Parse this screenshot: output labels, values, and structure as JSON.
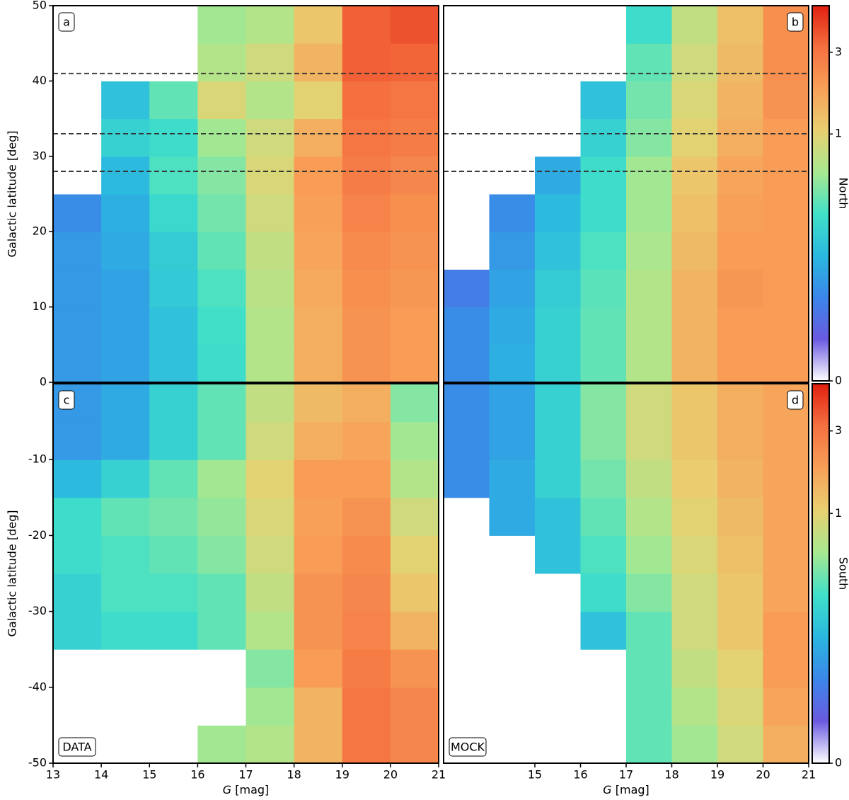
{
  "chart_data": [
    {
      "type": "heatmap",
      "panel_label": "a",
      "label_corner": "upper left",
      "ylabel": "Galactic latitude [deg]",
      "xbins": [
        13,
        14,
        15,
        16,
        17,
        18,
        19,
        20,
        21
      ],
      "ybins": [
        0,
        5,
        10,
        15,
        20,
        25,
        30,
        35,
        40,
        45,
        50
      ],
      "xlim": [
        13,
        21
      ],
      "ylim": [
        0,
        50
      ],
      "yticks": [
        0,
        10,
        20,
        30,
        40,
        50
      ],
      "hlines": [
        28,
        33,
        41
      ],
      "values": [
        [
          0.03,
          0.04,
          0.1,
          0.2,
          0.6,
          1.6,
          2.2,
          2.0
        ],
        [
          0.03,
          0.04,
          0.1,
          0.22,
          0.6,
          1.6,
          2.2,
          2.0
        ],
        [
          0.03,
          0.04,
          0.12,
          0.25,
          0.65,
          1.7,
          2.3,
          2.1
        ],
        [
          0.03,
          0.05,
          0.13,
          0.3,
          0.7,
          1.8,
          2.4,
          2.2
        ],
        [
          0.02,
          0.06,
          0.18,
          0.35,
          0.8,
          1.9,
          2.6,
          2.3
        ],
        [
          0,
          0.08,
          0.25,
          0.4,
          0.9,
          2.0,
          2.8,
          2.5
        ],
        [
          0,
          0.15,
          0.2,
          0.5,
          0.8,
          1.6,
          3.0,
          2.8
        ],
        [
          0,
          0.1,
          0.3,
          0.9,
          0.6,
          1.0,
          3.2,
          3.0
        ],
        [
          0,
          0,
          0,
          0.6,
          0.8,
          1.5,
          3.5,
          3.4
        ],
        [
          0,
          0,
          0,
          0.5,
          0.6,
          1.2,
          3.5,
          3.8
        ]
      ]
    },
    {
      "type": "heatmap",
      "panel_label": "b",
      "label_corner": "upper right",
      "xbins": [
        13,
        14,
        15,
        16,
        17,
        18,
        19,
        20,
        21
      ],
      "ybins": [
        0,
        5,
        10,
        15,
        20,
        25,
        30,
        35,
        40,
        45,
        50
      ],
      "xlim": [
        13,
        21
      ],
      "ylim": [
        0,
        50
      ],
      "hlines": [
        28,
        33,
        41
      ],
      "values": [
        [
          0.02,
          0.06,
          0.15,
          0.3,
          0.6,
          1.5,
          2.0,
          2.0
        ],
        [
          0.02,
          0.05,
          0.15,
          0.3,
          0.6,
          1.5,
          2.0,
          2.0
        ],
        [
          0.01,
          0.04,
          0.13,
          0.28,
          0.6,
          1.5,
          2.1,
          2.0
        ],
        [
          0,
          0.03,
          0.1,
          0.25,
          0.55,
          1.4,
          2.0,
          2.0
        ],
        [
          0,
          0.02,
          0.08,
          0.2,
          0.5,
          1.3,
          1.9,
          2.0
        ],
        [
          0,
          0,
          0.05,
          0.2,
          0.5,
          1.2,
          1.8,
          2.0
        ],
        [
          0,
          0,
          0,
          0.15,
          0.4,
          1.0,
          1.6,
          2.0
        ],
        [
          0,
          0,
          0,
          0.1,
          0.35,
          0.9,
          1.5,
          2.2
        ],
        [
          0,
          0,
          0,
          0,
          0.3,
          0.8,
          1.4,
          2.3
        ],
        [
          0,
          0,
          0,
          0,
          0.2,
          0.7,
          1.3,
          2.3
        ]
      ]
    },
    {
      "type": "heatmap",
      "panel_label": "c",
      "label_corner": "upper left",
      "tag": "DATA",
      "ylabel": "Galactic latitude [deg]",
      "xlabel": "G",
      "xlabel_unit": "[mag]",
      "xbins": [
        13,
        14,
        15,
        16,
        17,
        18,
        19,
        20,
        21
      ],
      "ybins": [
        -50,
        -45,
        -40,
        -35,
        -30,
        -25,
        -20,
        -15,
        -10,
        -5,
        0
      ],
      "xlim": [
        13,
        21
      ],
      "ylim": [
        -50,
        0
      ],
      "yticks": [
        -50,
        -40,
        -30,
        -20,
        -10
      ],
      "xticks": [
        13,
        14,
        15,
        16,
        17,
        18,
        19,
        20,
        21
      ],
      "values": [
        [
          0,
          0,
          0,
          0.5,
          0.6,
          1.5,
          3.0,
          2.5
        ],
        [
          0,
          0,
          0,
          0,
          0.5,
          1.5,
          3.0,
          2.5
        ],
        [
          0,
          0,
          0,
          0,
          0.4,
          2.0,
          2.8,
          2.2
        ],
        [
          0.15,
          0.2,
          0.2,
          0.3,
          0.6,
          2.2,
          2.6,
          1.5
        ],
        [
          0.15,
          0.25,
          0.25,
          0.3,
          0.7,
          2.2,
          2.5,
          1.2
        ],
        [
          0.2,
          0.25,
          0.3,
          0.4,
          0.8,
          2.0,
          2.4,
          1.0
        ],
        [
          0.2,
          0.3,
          0.35,
          0.45,
          0.9,
          1.9,
          2.2,
          0.8
        ],
        [
          0.08,
          0.15,
          0.3,
          0.5,
          1.0,
          2.0,
          2.0,
          0.6
        ],
        [
          0.03,
          0.05,
          0.15,
          0.3,
          0.8,
          1.6,
          1.8,
          0.5
        ],
        [
          0.03,
          0.05,
          0.15,
          0.3,
          0.7,
          1.4,
          1.6,
          0.4
        ]
      ]
    },
    {
      "type": "heatmap",
      "panel_label": "d",
      "label_corner": "upper right",
      "tag": "MOCK",
      "xlabel": "G",
      "xlabel_unit": "[mag]",
      "xbins": [
        13,
        14,
        15,
        16,
        17,
        18,
        19,
        20,
        21
      ],
      "ybins": [
        -50,
        -45,
        -40,
        -35,
        -30,
        -25,
        -20,
        -15,
        -10,
        -5,
        0
      ],
      "xlim": [
        13,
        21
      ],
      "ylim": [
        -50,
        0
      ],
      "xticks": [
        15,
        16,
        17,
        18,
        19,
        20,
        21
      ],
      "values": [
        [
          0,
          0,
          0,
          0,
          0.3,
          0.5,
          0.8,
          1.6
        ],
        [
          0,
          0,
          0,
          0,
          0.3,
          0.6,
          0.9,
          1.8
        ],
        [
          0,
          0,
          0,
          0,
          0.3,
          0.7,
          1.0,
          2.0
        ],
        [
          0,
          0,
          0,
          0.1,
          0.3,
          0.8,
          1.2,
          2.0
        ],
        [
          0,
          0,
          0,
          0.2,
          0.4,
          0.8,
          1.2,
          1.8
        ],
        [
          0,
          0,
          0.1,
          0.25,
          0.5,
          0.9,
          1.3,
          1.8
        ],
        [
          0,
          0.05,
          0.1,
          0.3,
          0.6,
          1.0,
          1.4,
          1.8
        ],
        [
          0.02,
          0.05,
          0.15,
          0.35,
          0.7,
          1.1,
          1.5,
          1.8
        ],
        [
          0.02,
          0.04,
          0.15,
          0.4,
          0.8,
          1.2,
          1.6,
          1.8
        ],
        [
          0.02,
          0.04,
          0.15,
          0.4,
          0.8,
          1.2,
          1.6,
          1.8
        ]
      ]
    },
    {
      "type": "colorbar",
      "label": "North",
      "lim": [
        0,
        5
      ],
      "ticks": [
        0,
        1,
        3
      ]
    },
    {
      "type": "colorbar",
      "label": "South",
      "lim": [
        0,
        5
      ],
      "ticks": [
        0,
        1,
        3
      ]
    }
  ],
  "color_scale": {
    "gamma": 0.26,
    "colormap": [
      "#ffffff",
      "#6a5ae0",
      "#3b86e8",
      "#2ab8e0",
      "#40e0c8",
      "#a8e890",
      "#e8d070",
      "#f8a058",
      "#f57040",
      "#e02010"
    ]
  }
}
